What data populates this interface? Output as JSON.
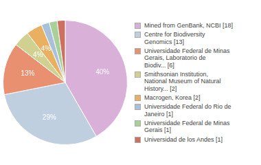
{
  "chart_data": {
    "type": "pie",
    "categories": [
      "Mined from GenBank, NCBI [18]",
      "Centre for Biodiversity\nGenomics [13]",
      "Universidade Federal de Minas\nGerais, Laboratorio de\nBiodiv... [6]",
      "Smithsonian Institution,\nNational Museum of Natural\nHistory... [2]",
      "Macrogen, Korea [2]",
      "Universidade Federal do Rio de\nJaneiro [1]",
      "Universidade Federal de Minas\nGerais [1]",
      "Universidad de los Andes [1]"
    ],
    "values": [
      40,
      29,
      13,
      4,
      4,
      2,
      2,
      2
    ],
    "value_labels": [
      "40%",
      "29%",
      "13%",
      "4%",
      "4%",
      null,
      null,
      null
    ],
    "colors": [
      "#d8b0d8",
      "#c0cfe0",
      "#e89070",
      "#d0d090",
      "#e8b060",
      "#a8c0d8",
      "#a8d098",
      "#cc7060"
    ],
    "data_labels": true,
    "legend": "right"
  }
}
